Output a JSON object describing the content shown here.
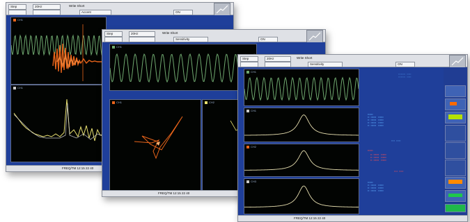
{
  "screens": [
    {
      "toolbar": {
        "field1": "Step",
        "field2": "20Hz",
        "title": "Write Short",
        "field3": "Accent",
        "field4": "ON",
        "display": "1/3"
      },
      "status": {
        "left": "",
        "center": "FREQ/TM 12:15 22 40"
      },
      "colors": {
        "body": "#1f3f9a",
        "wave": "#6fa86f",
        "orange": "#e8641a",
        "yellow": "#e8e070"
      }
    },
    {
      "toolbar": {
        "field1": "Step",
        "field2": "20Hz",
        "title": "Write Short",
        "field3": "Sensitivity",
        "field4": "ON",
        "display": "1/3"
      },
      "status": {
        "left": "",
        "center": "FREQ/TM 12:15 22 40"
      },
      "colors": {
        "body": "#1f3f9a",
        "wave": "#6fa86f",
        "orange": "#e8641a"
      }
    },
    {
      "toolbar": {
        "field1": "Step",
        "field2": "20Hz",
        "title": "Write Short",
        "field3": "Sensitivity",
        "field4": "ON",
        "display": "1/3"
      },
      "status": {
        "left": "",
        "center": "FREQ/TM 12:15 22 40"
      },
      "right_panel_buttons": [
        "Menu",
        "Window",
        "Display",
        "Marker",
        "",
        "Analyze",
        "Sig",
        "Save"
      ],
      "colors": {
        "body": "#1f3f9a",
        "wave": "#6fa86f",
        "numbers": "#5fb0ff",
        "red": "#ff5050"
      }
    }
  ]
}
